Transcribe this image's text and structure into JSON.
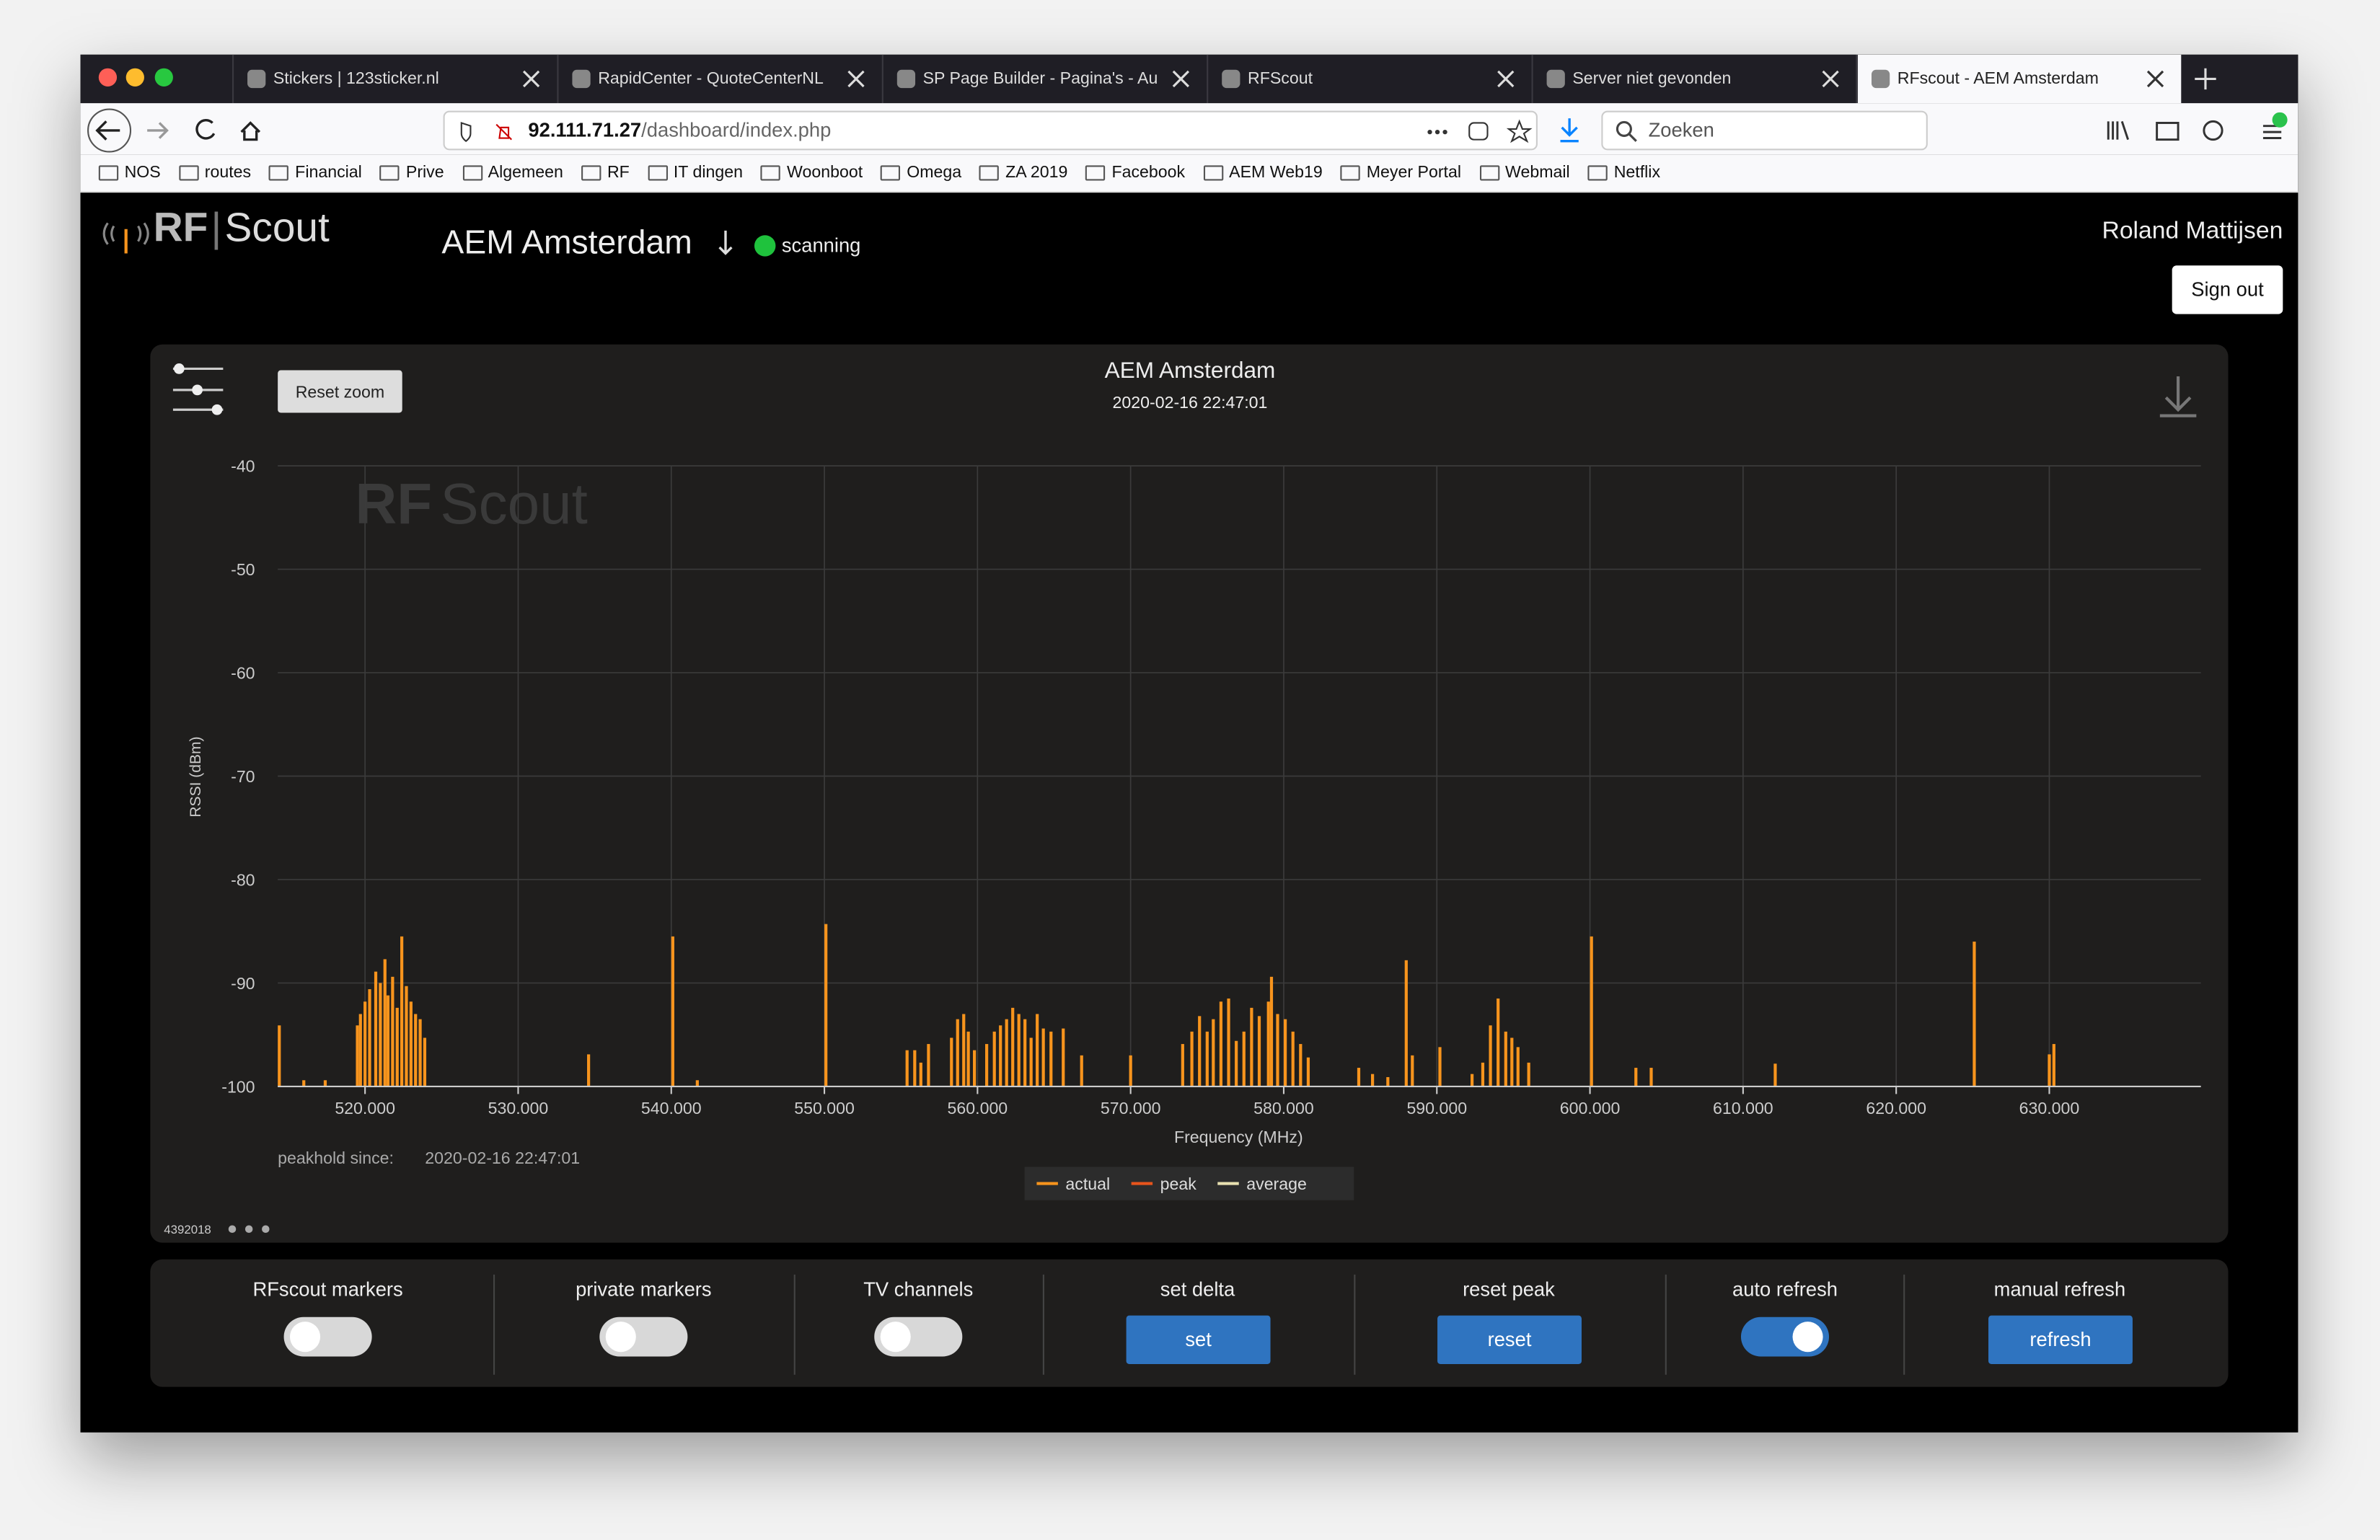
{
  "browser": {
    "tabs": [
      {
        "title": "Stickers | 123sticker.nl"
      },
      {
        "title": "RapidCenter - QuoteCenterNL"
      },
      {
        "title": "SP Page Builder - Pagina's - Au"
      },
      {
        "title": "RFScout"
      },
      {
        "title": "Server niet gevonden"
      },
      {
        "title": "RFscout - AEM Amsterdam",
        "active": true
      }
    ],
    "url_host": "92.111.71.27",
    "url_path": "/dashboard/index.php",
    "search_placeholder": "Zoeken",
    "bookmarks": [
      "NOS",
      "routes",
      "Financial",
      "Prive",
      "Algemeen",
      "RF",
      "IT dingen",
      "Woonboot",
      "Omega",
      "ZA 2019",
      "Facebook",
      "AEM Web19",
      "Meyer Portal",
      "Webmail",
      "Netflix"
    ]
  },
  "header": {
    "logo_rf": "RF",
    "logo_scout": "Scout",
    "site": "AEM Amsterdam",
    "status": "scanning",
    "user": "Roland Mattijsen",
    "sign_out": "Sign out"
  },
  "chart_data": {
    "type": "bar",
    "title": "AEM Amsterdam",
    "subtitle": "2020-02-16 22:47:01",
    "reset_zoom": "Reset zoom",
    "x_label": "Frequency (MHz)",
    "y_label": "RSSI (dBm)",
    "peakhold_label": "peakhold since:",
    "peakhold_time": "2020-02-16 22:47:01",
    "build": "4392018",
    "xlim": [
      514.3,
      639.9
    ],
    "ylim": [
      -100,
      -40
    ],
    "yticks": [
      -40,
      -50,
      -60,
      -70,
      -80,
      -90,
      -100
    ],
    "xticks": [
      {
        "value": 520,
        "label": "520.000"
      },
      {
        "value": 530,
        "label": "530.000"
      },
      {
        "value": 540,
        "label": "540.000"
      },
      {
        "value": 550,
        "label": "550.000"
      },
      {
        "value": 560,
        "label": "560.000"
      },
      {
        "value": 570,
        "label": "570.000"
      },
      {
        "value": 580,
        "label": "580.000"
      },
      {
        "value": 590,
        "label": "590.000"
      },
      {
        "value": 600,
        "label": "600.000"
      },
      {
        "value": 610,
        "label": "610.000"
      },
      {
        "value": 620,
        "label": "620.000"
      },
      {
        "value": 630,
        "label": "630.000"
      }
    ],
    "grid": true,
    "x": [
      514.4,
      516.0,
      517.4,
      519.5,
      519.7,
      520.0,
      520.3,
      520.7,
      521.0,
      521.3,
      521.5,
      521.8,
      522.1,
      522.4,
      522.7,
      523.0,
      523.3,
      523.6,
      523.9,
      534.6,
      540.1,
      541.7,
      550.1,
      555.4,
      555.9,
      556.3,
      556.8,
      558.3,
      558.7,
      559.1,
      559.4,
      559.8,
      560.6,
      561.1,
      561.5,
      561.9,
      562.3,
      562.7,
      563.1,
      563.5,
      563.9,
      564.3,
      564.8,
      565.6,
      566.8,
      570.0,
      573.4,
      574.0,
      574.5,
      575.0,
      575.4,
      575.9,
      576.4,
      576.9,
      577.4,
      577.9,
      578.4,
      579.0,
      579.2,
      579.6,
      580.1,
      580.6,
      581.1,
      581.6,
      584.9,
      585.8,
      586.8,
      588.0,
      588.4,
      590.2,
      592.3,
      593.0,
      593.5,
      594.0,
      594.5,
      594.9,
      595.3,
      596.0,
      600.1,
      603.0,
      604.0,
      612.1,
      625.1,
      630.0,
      630.3
    ],
    "series": [
      {
        "name": "actual",
        "color": "#f7941d",
        "values": [
          -94.1,
          -99.4,
          -99.4,
          -94.1,
          -93.0,
          -91.8,
          -90.6,
          -88.9,
          -90.0,
          -87.7,
          -91.2,
          -89.4,
          -92.4,
          -85.5,
          -90.3,
          -91.8,
          -93.0,
          -93.5,
          -95.3,
          -96.9,
          -85.5,
          -99.4,
          -84.3,
          -96.5,
          -96.5,
          -97.7,
          -95.9,
          -95.3,
          -93.5,
          -93.0,
          -94.7,
          -96.5,
          -95.9,
          -94.7,
          -94.1,
          -93.5,
          -92.4,
          -93.0,
          -93.5,
          -95.3,
          -93.0,
          -94.4,
          -94.7,
          -94.4,
          -97.0,
          -97.0,
          -95.9,
          -94.7,
          -93.2,
          -94.7,
          -93.5,
          -91.8,
          -91.5,
          -95.6,
          -94.7,
          -92.4,
          -93.2,
          -91.8,
          -89.4,
          -93.0,
          -93.5,
          -94.7,
          -95.9,
          -97.2,
          -98.2,
          -98.8,
          -99.1,
          -87.8,
          -97.0,
          -96.2,
          -98.8,
          -97.7,
          -94.1,
          -91.5,
          -94.7,
          -95.3,
          -96.2,
          -97.7,
          -85.5,
          -98.2,
          -98.2,
          -97.8,
          -86.0,
          -96.9,
          -95.9
        ]
      },
      {
        "name": "peak",
        "color": "#e8541c"
      },
      {
        "name": "average",
        "color": "#e8e0b0"
      }
    ]
  },
  "controls": [
    {
      "label": "RFscout markers",
      "type": "toggle",
      "on": false
    },
    {
      "label": "private markers",
      "type": "toggle",
      "on": false
    },
    {
      "label": "TV channels",
      "type": "toggle",
      "on": false
    },
    {
      "label": "set delta",
      "type": "button",
      "button": "set"
    },
    {
      "label": "reset peak",
      "type": "button",
      "button": "reset"
    },
    {
      "label": "auto refresh",
      "type": "toggle",
      "on": true
    },
    {
      "label": "manual refresh",
      "type": "button",
      "button": "refresh"
    }
  ]
}
